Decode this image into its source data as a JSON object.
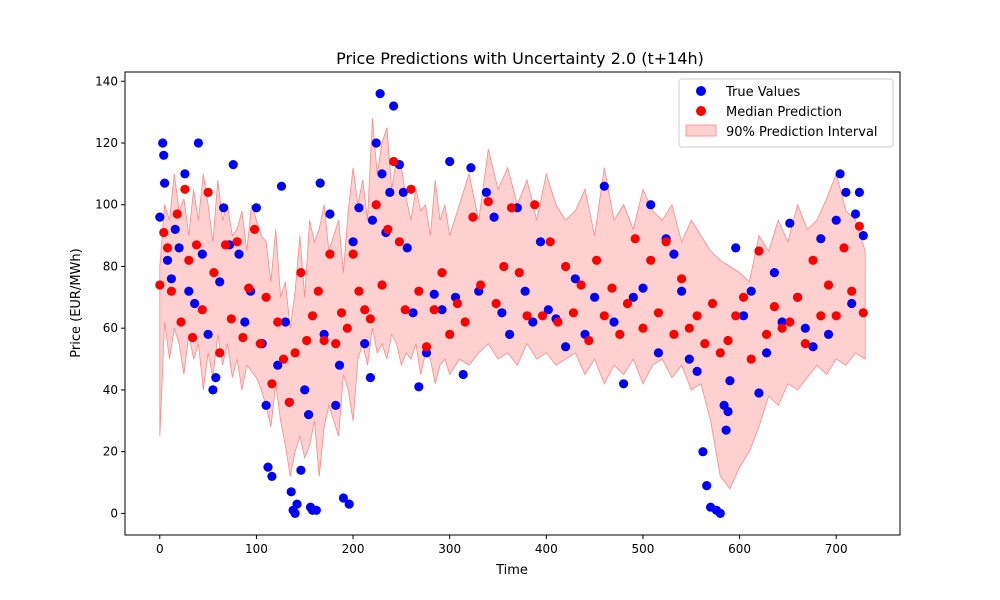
{
  "chart_data": {
    "type": "scatter",
    "title": "Price Predictions with Uncertainty 2.0 (t+14h)",
    "xlabel": "Time",
    "ylabel": "Price (EUR/MWh)",
    "xlim": [
      -36,
      766
    ],
    "ylim": [
      -7,
      143
    ],
    "xticks": [
      0,
      100,
      200,
      300,
      400,
      500,
      600,
      700
    ],
    "yticks": [
      0,
      20,
      40,
      60,
      80,
      100,
      120,
      140
    ],
    "grid": false,
    "legend_position": "top-right",
    "series": [
      {
        "name": "True Values",
        "kind": "scatter",
        "color": "#0000ff",
        "x": [
          0,
          3,
          4,
          5,
          8,
          12,
          16,
          20,
          26,
          30,
          36,
          40,
          44,
          50,
          55,
          58,
          62,
          66,
          72,
          76,
          82,
          88,
          94,
          100,
          106,
          110,
          112,
          116,
          122,
          126,
          130,
          134,
          136,
          138,
          140,
          142,
          146,
          150,
          154,
          156,
          158,
          162,
          166,
          170,
          176,
          182,
          186,
          190,
          196,
          200,
          206,
          212,
          218,
          220,
          224,
          228,
          230,
          234,
          238,
          242,
          248,
          252,
          256,
          262,
          268,
          276,
          284,
          292,
          300,
          306,
          314,
          322,
          330,
          338,
          346,
          354,
          362,
          370,
          378,
          386,
          394,
          402,
          410,
          420,
          430,
          440,
          450,
          460,
          470,
          480,
          490,
          500,
          508,
          516,
          524,
          532,
          540,
          548,
          556,
          562,
          566,
          570,
          576,
          580,
          584,
          586,
          588,
          590,
          596,
          604,
          612,
          620,
          628,
          636,
          644,
          652,
          660,
          668,
          676,
          684,
          692,
          700,
          704,
          710,
          716,
          720,
          724,
          728
        ],
        "y": [
          96,
          120,
          116,
          107,
          82,
          76,
          92,
          86,
          110,
          72,
          68,
          120,
          84,
          58,
          40,
          44,
          75,
          99,
          87,
          113,
          84,
          62,
          72,
          99,
          55,
          35,
          15,
          12,
          48,
          106,
          62,
          36,
          7,
          1,
          0,
          3,
          14,
          40,
          32,
          2,
          1,
          1,
          107,
          58,
          97,
          35,
          48,
          5,
          3,
          88,
          99,
          55,
          44,
          95,
          120,
          136,
          110,
          91,
          104,
          132,
          113,
          104,
          86,
          65,
          41,
          52,
          71,
          66,
          114,
          70,
          45,
          112,
          72,
          104,
          96,
          65,
          58,
          99,
          72,
          62,
          88,
          66,
          63,
          54,
          76,
          58,
          70,
          106,
          62,
          42,
          70,
          73,
          100,
          52,
          89,
          84,
          72,
          50,
          46,
          20,
          9,
          2,
          1,
          0,
          35,
          27,
          33,
          43,
          86,
          64,
          72,
          39,
          52,
          78,
          62,
          94,
          70,
          60,
          54,
          89,
          58,
          95,
          110,
          104,
          68,
          97,
          104,
          90
        ]
      },
      {
        "name": "Median Prediction",
        "kind": "scatter",
        "color": "#ff0000",
        "x": [
          0,
          4,
          8,
          12,
          18,
          22,
          26,
          30,
          34,
          38,
          44,
          50,
          56,
          62,
          68,
          74,
          80,
          86,
          92,
          98,
          104,
          110,
          116,
          122,
          128,
          134,
          140,
          146,
          152,
          158,
          164,
          170,
          176,
          182,
          188,
          194,
          200,
          206,
          212,
          218,
          224,
          230,
          236,
          242,
          248,
          254,
          260,
          268,
          276,
          284,
          292,
          300,
          308,
          316,
          324,
          332,
          340,
          348,
          356,
          364,
          372,
          380,
          388,
          396,
          404,
          412,
          420,
          428,
          436,
          444,
          452,
          460,
          468,
          476,
          484,
          492,
          500,
          508,
          516,
          524,
          532,
          540,
          548,
          556,
          564,
          572,
          580,
          588,
          596,
          604,
          612,
          620,
          628,
          636,
          644,
          652,
          660,
          668,
          676,
          684,
          692,
          700,
          708,
          716,
          724,
          728
        ],
        "y": [
          74,
          91,
          86,
          72,
          97,
          62,
          105,
          82,
          57,
          87,
          66,
          104,
          78,
          52,
          87,
          63,
          88,
          57,
          73,
          92,
          55,
          70,
          42,
          62,
          50,
          36,
          52,
          78,
          56,
          64,
          72,
          56,
          84,
          55,
          65,
          60,
          84,
          72,
          66,
          63,
          100,
          74,
          92,
          114,
          88,
          66,
          105,
          72,
          54,
          66,
          78,
          58,
          68,
          62,
          96,
          74,
          101,
          68,
          80,
          99,
          78,
          64,
          100,
          64,
          88,
          62,
          80,
          65,
          74,
          56,
          82,
          64,
          73,
          58,
          68,
          89,
          60,
          82,
          65,
          88,
          58,
          76,
          60,
          64,
          55,
          68,
          52,
          56,
          64,
          70,
          50,
          85,
          58,
          67,
          60,
          62,
          70,
          55,
          82,
          64,
          74,
          64,
          86,
          72,
          93,
          65
        ]
      },
      {
        "name": "90% Prediction Interval",
        "kind": "band",
        "color": "#ffaaaa",
        "x": [
          0,
          5,
          10,
          15,
          20,
          25,
          30,
          35,
          40,
          45,
          50,
          55,
          60,
          65,
          70,
          75,
          80,
          85,
          90,
          95,
          100,
          105,
          110,
          115,
          120,
          125,
          130,
          135,
          140,
          145,
          150,
          155,
          160,
          165,
          170,
          175,
          180,
          185,
          190,
          195,
          200,
          205,
          210,
          215,
          220,
          225,
          230,
          235,
          240,
          245,
          250,
          255,
          260,
          265,
          270,
          275,
          280,
          285,
          290,
          295,
          300,
          310,
          320,
          330,
          340,
          350,
          360,
          370,
          380,
          390,
          400,
          410,
          420,
          430,
          440,
          450,
          460,
          470,
          480,
          490,
          500,
          510,
          520,
          530,
          540,
          550,
          560,
          570,
          580,
          590,
          600,
          610,
          620,
          630,
          640,
          650,
          660,
          670,
          680,
          690,
          700,
          710,
          720,
          730
        ],
        "lower": [
          25,
          62,
          50,
          60,
          55,
          45,
          58,
          50,
          55,
          40,
          52,
          44,
          58,
          48,
          55,
          44,
          50,
          40,
          48,
          46,
          44,
          40,
          35,
          28,
          42,
          30,
          22,
          12,
          20,
          25,
          18,
          22,
          30,
          12,
          28,
          35,
          30,
          25,
          45,
          40,
          30,
          50,
          55,
          48,
          60,
          52,
          55,
          50,
          58,
          55,
          48,
          52,
          50,
          55,
          45,
          52,
          50,
          42,
          48,
          50,
          45,
          50,
          48,
          52,
          55,
          50,
          52,
          48,
          55,
          50,
          52,
          48,
          50,
          52,
          45,
          50,
          42,
          48,
          45,
          50,
          42,
          48,
          50,
          44,
          48,
          40,
          42,
          30,
          12,
          8,
          15,
          20,
          28,
          38,
          35,
          42,
          40,
          44,
          48,
          45,
          50,
          48,
          52,
          50
        ],
        "upper": [
          80,
          100,
          95,
          110,
          98,
          102,
          90,
          105,
          95,
          110,
          100,
          88,
          108,
          95,
          100,
          90,
          92,
          98,
          85,
          100,
          95,
          90,
          88,
          75,
          92,
          70,
          75,
          60,
          72,
          90,
          70,
          95,
          88,
          92,
          100,
          85,
          90,
          95,
          78,
          98,
          112,
          100,
          108,
          95,
          128,
          110,
          120,
          125,
          105,
          115,
          112,
          102,
          95,
          105,
          98,
          100,
          90,
          108,
          95,
          100,
          90,
          100,
          110,
          95,
          118,
          105,
          112,
          100,
          108,
          95,
          110,
          100,
          95,
          98,
          105,
          90,
          112,
          95,
          100,
          92,
          105,
          98,
          95,
          100,
          88,
          95,
          90,
          85,
          82,
          80,
          78,
          75,
          90,
          85,
          95,
          88,
          100,
          92,
          95,
          102,
          110,
          98,
          95,
          85
        ]
      }
    ]
  }
}
